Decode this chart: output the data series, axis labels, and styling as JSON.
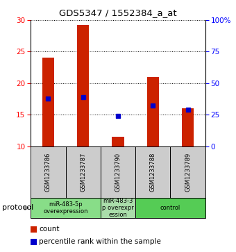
{
  "title": "GDS5347 / 1552384_a_at",
  "samples": [
    "GSM1233786",
    "GSM1233787",
    "GSM1233790",
    "GSM1233788",
    "GSM1233789"
  ],
  "count_values": [
    24.1,
    29.2,
    11.5,
    21.0,
    16.0
  ],
  "percentile_values": [
    17.5,
    17.8,
    14.8,
    16.5,
    15.8
  ],
  "count_baseline": 10.0,
  "ylim_left": [
    10,
    30
  ],
  "ylim_right": [
    0,
    100
  ],
  "yticks_left": [
    10,
    15,
    20,
    25,
    30
  ],
  "yticks_right": [
    0,
    25,
    50,
    75,
    100
  ],
  "ytick_labels_right": [
    "0",
    "25",
    "50",
    "75",
    "100%"
  ],
  "bar_color": "#cc2200",
  "percentile_color": "#0000cc",
  "bg_color": "#ffffff",
  "protocol_groups": [
    {
      "label": "miR-483-5p\noverexpression",
      "samples": [
        0,
        1
      ],
      "color": "#88dd88"
    },
    {
      "label": "miR-483-3\np overexpr\nession",
      "samples": [
        2
      ],
      "color": "#aaddaa"
    },
    {
      "label": "control",
      "samples": [
        3,
        4
      ],
      "color": "#55cc55"
    }
  ],
  "legend_count_label": "count",
  "legend_pct_label": "percentile rank within the sample",
  "protocol_label": "protocol",
  "bar_width": 0.35,
  "sample_bg": "#cccccc"
}
